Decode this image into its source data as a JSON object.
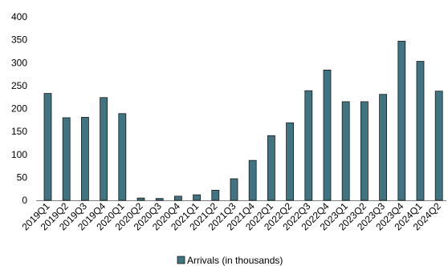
{
  "chart_data": {
    "type": "bar",
    "categories": [
      "2019Q1",
      "2019Q2",
      "2019Q3",
      "2019Q4",
      "2020Q1",
      "2020Q2",
      "2020Q3",
      "2020Q4",
      "2021Q1",
      "2021Q2",
      "2021Q3",
      "2021Q4",
      "2022Q1",
      "2022Q2",
      "2022Q3",
      "2022Q4",
      "2023Q1",
      "2023Q2",
      "2023Q3",
      "2023Q4",
      "2024Q1",
      "2024Q2"
    ],
    "series": [
      {
        "name": "Arrivals (in thousands)",
        "values": [
          233,
          180,
          181,
          224,
          189,
          5,
          4,
          9,
          12,
          22,
          47,
          87,
          141,
          169,
          239,
          284,
          215,
          215,
          231,
          347,
          303,
          238
        ]
      }
    ],
    "ylim": [
      0,
      400
    ],
    "yticks": [
      0,
      50,
      100,
      150,
      200,
      250,
      300,
      350,
      400
    ],
    "grid": false,
    "legend_position": "bottom-center",
    "colors": {
      "bar_fill": "#3f7583",
      "bar_stroke": "#1a1a1a",
      "axis": "#7f7f7f"
    }
  }
}
